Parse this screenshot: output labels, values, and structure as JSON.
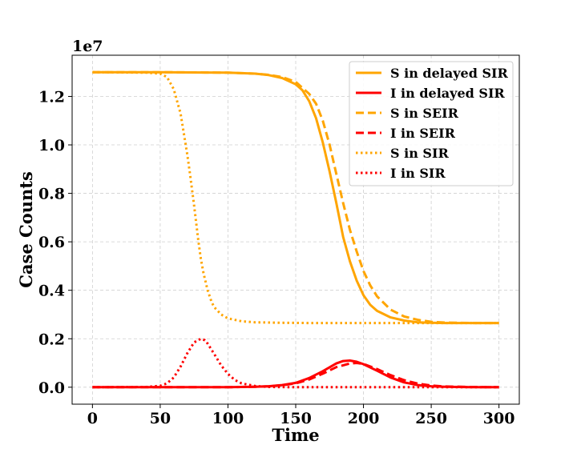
{
  "chart_data": {
    "type": "line",
    "title": "",
    "xlabel": "Time",
    "ylabel": "Case Counts",
    "y_offset_label": "1e7",
    "y_multiplier": 10000000,
    "xlim": [
      -15,
      315
    ],
    "ylim": [
      -0.07,
      1.37
    ],
    "x_ticks": [
      0,
      50,
      100,
      150,
      200,
      250,
      300
    ],
    "x_tick_labels": [
      "0",
      "50",
      "100",
      "150",
      "200",
      "250",
      "300"
    ],
    "y_ticks": [
      0.0,
      0.2,
      0.4,
      0.6,
      0.8,
      1.0,
      1.2
    ],
    "y_tick_labels": [
      "0.0",
      "0.2",
      "0.4",
      "0.6",
      "0.8",
      "1.0",
      "1.2"
    ],
    "grid": true,
    "legend_position": "top-right",
    "colors": {
      "S": "#ffa500",
      "I": "#ff0000"
    },
    "series": [
      {
        "name": "S in delayed SIR",
        "color": "#ffa500",
        "style": "solid",
        "x": [
          0,
          50,
          100,
          120,
          130,
          140,
          150,
          155,
          160,
          165,
          170,
          175,
          180,
          185,
          190,
          195,
          200,
          205,
          210,
          220,
          230,
          240,
          250,
          260,
          280,
          300
        ],
        "y": [
          1.3,
          1.3,
          1.298,
          1.294,
          1.288,
          1.276,
          1.25,
          1.225,
          1.18,
          1.11,
          1.01,
          0.89,
          0.76,
          0.62,
          0.52,
          0.44,
          0.38,
          0.34,
          0.315,
          0.288,
          0.275,
          0.268,
          0.266,
          0.265,
          0.265,
          0.265
        ]
      },
      {
        "name": "I in delayed SIR",
        "color": "#ff0000",
        "style": "solid",
        "x": [
          0,
          100,
          120,
          130,
          140,
          150,
          160,
          170,
          180,
          185,
          190,
          195,
          200,
          210,
          220,
          230,
          240,
          250,
          260,
          280,
          300
        ],
        "y": [
          0,
          0,
          0.002,
          0.004,
          0.009,
          0.018,
          0.038,
          0.066,
          0.098,
          0.108,
          0.11,
          0.105,
          0.095,
          0.068,
          0.04,
          0.02,
          0.009,
          0.004,
          0.002,
          0.0,
          0.0
        ]
      },
      {
        "name": "S in SEIR",
        "color": "#ffa500",
        "style": "dashed",
        "x": [
          0,
          50,
          100,
          120,
          130,
          140,
          150,
          160,
          165,
          170,
          175,
          180,
          185,
          190,
          195,
          200,
          205,
          210,
          220,
          230,
          240,
          250,
          260,
          280,
          300
        ],
        "y": [
          1.3,
          1.3,
          1.298,
          1.294,
          1.289,
          1.28,
          1.26,
          1.21,
          1.17,
          1.1,
          1.0,
          0.88,
          0.76,
          0.65,
          0.56,
          0.48,
          0.42,
          0.375,
          0.32,
          0.292,
          0.278,
          0.27,
          0.267,
          0.265,
          0.265
        ]
      },
      {
        "name": "I in SEIR",
        "color": "#ff0000",
        "style": "dashed",
        "x": [
          0,
          100,
          120,
          130,
          140,
          150,
          160,
          170,
          180,
          190,
          195,
          200,
          210,
          220,
          230,
          240,
          250,
          260,
          280,
          300
        ],
        "y": [
          0,
          0,
          0.002,
          0.004,
          0.008,
          0.016,
          0.032,
          0.056,
          0.083,
          0.098,
          0.1,
          0.096,
          0.075,
          0.05,
          0.029,
          0.015,
          0.007,
          0.003,
          0.001,
          0.0
        ]
      },
      {
        "name": "S in SIR",
        "color": "#ffa500",
        "style": "dotted",
        "x": [
          0,
          40,
          50,
          55,
          60,
          65,
          70,
          72,
          75,
          78,
          80,
          82,
          85,
          88,
          90,
          95,
          100,
          110,
          120,
          140,
          160,
          200,
          250,
          300
        ],
        "y": [
          1.3,
          1.298,
          1.294,
          1.28,
          1.23,
          1.13,
          0.96,
          0.88,
          0.75,
          0.61,
          0.53,
          0.47,
          0.4,
          0.35,
          0.33,
          0.3,
          0.284,
          0.272,
          0.268,
          0.266,
          0.265,
          0.265,
          0.265,
          0.265
        ]
      },
      {
        "name": "I in SIR",
        "color": "#ff0000",
        "style": "dotted",
        "x": [
          0,
          40,
          50,
          55,
          60,
          65,
          70,
          75,
          80,
          83,
          85,
          90,
          95,
          100,
          105,
          110,
          120,
          130,
          150,
          200,
          300
        ],
        "y": [
          0,
          0.001,
          0.006,
          0.016,
          0.04,
          0.085,
          0.14,
          0.185,
          0.2,
          0.194,
          0.18,
          0.136,
          0.09,
          0.055,
          0.03,
          0.016,
          0.005,
          0.001,
          0.0,
          0.0,
          0.0
        ]
      }
    ]
  }
}
